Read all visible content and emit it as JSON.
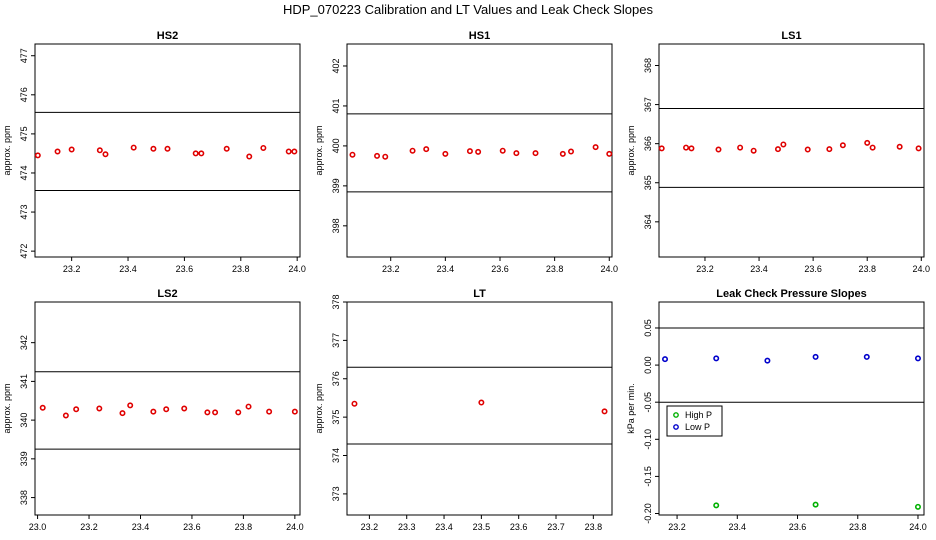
{
  "suptitle": "HDP_070223  Calibration and LT Values and Leak Check Slopes",
  "chart_data": [
    {
      "type": "scatter",
      "title": "HS2",
      "ylabel": "approx. ppm",
      "xlim": [
        23.07,
        24.01
      ],
      "ylim": [
        471.85,
        477.3
      ],
      "xticks": [
        23.2,
        23.4,
        23.6,
        23.8,
        24.0
      ],
      "xtick_labels": [
        "23.2",
        "23.4",
        "23.6",
        "23.8",
        "24.0"
      ],
      "yticks": [
        472,
        473,
        474,
        475,
        476,
        477
      ],
      "ytick_labels": [
        "472",
        "473",
        "474",
        "475",
        "476",
        "477"
      ],
      "hlines": [
        473.55,
        475.55
      ],
      "series": [
        {
          "name": "",
          "color": "#e00000",
          "marker": "o",
          "x": [
            23.08,
            23.15,
            23.2,
            23.3,
            23.32,
            23.42,
            23.49,
            23.54,
            23.64,
            23.66,
            23.75,
            23.83,
            23.88,
            23.97,
            23.99
          ],
          "y": [
            474.45,
            474.55,
            474.6,
            474.58,
            474.48,
            474.65,
            474.62,
            474.62,
            474.5,
            474.5,
            474.62,
            474.42,
            474.64,
            474.55,
            474.55
          ]
        }
      ]
    },
    {
      "type": "scatter",
      "title": "HS1",
      "ylabel": "approx. ppm",
      "xlim": [
        23.04,
        24.01
      ],
      "ylim": [
        397.22,
        402.55
      ],
      "xticks": [
        23.2,
        23.4,
        23.6,
        23.8,
        24.0
      ],
      "xtick_labels": [
        "23.2",
        "23.4",
        "23.6",
        "23.8",
        "24.0"
      ],
      "yticks": [
        398,
        399,
        400,
        401,
        402
      ],
      "ytick_labels": [
        "398",
        "399",
        "400",
        "401",
        "402"
      ],
      "hlines": [
        398.85,
        400.8
      ],
      "series": [
        {
          "name": "",
          "color": "#e00000",
          "marker": "o",
          "x": [
            23.06,
            23.15,
            23.18,
            23.28,
            23.33,
            23.4,
            23.49,
            23.52,
            23.61,
            23.66,
            23.73,
            23.83,
            23.86,
            23.95,
            24.0
          ],
          "y": [
            399.78,
            399.75,
            399.73,
            399.88,
            399.92,
            399.8,
            399.87,
            399.85,
            399.88,
            399.82,
            399.82,
            399.8,
            399.86,
            399.97,
            399.8
          ]
        }
      ]
    },
    {
      "type": "scatter",
      "title": "LS1",
      "ylabel": "approx. ppm",
      "xlim": [
        23.03,
        24.01
      ],
      "ylim": [
        363.1,
        368.55
      ],
      "xticks": [
        23.2,
        23.4,
        23.6,
        23.8,
        24.0
      ],
      "xtick_labels": [
        "23.2",
        "23.4",
        "23.6",
        "23.8",
        "24.0"
      ],
      "yticks": [
        364,
        365,
        366,
        367,
        368
      ],
      "ytick_labels": [
        "364",
        "365",
        "366",
        "367",
        "368"
      ],
      "hlines": [
        364.88,
        366.9
      ],
      "series": [
        {
          "name": "",
          "color": "#e00000",
          "marker": "o",
          "x": [
            23.04,
            23.13,
            23.15,
            23.25,
            23.33,
            23.38,
            23.47,
            23.49,
            23.58,
            23.66,
            23.71,
            23.8,
            23.82,
            23.92,
            23.99
          ],
          "y": [
            365.88,
            365.9,
            365.88,
            365.85,
            365.9,
            365.82,
            365.86,
            365.98,
            365.85,
            365.86,
            365.96,
            366.02,
            365.9,
            365.92,
            365.88
          ]
        }
      ]
    },
    {
      "type": "scatter",
      "title": "LS2",
      "ylabel": "approx. ppm",
      "xlim": [
        22.99,
        24.02
      ],
      "ylim": [
        337.55,
        343.05
      ],
      "xticks": [
        23.0,
        23.2,
        23.4,
        23.6,
        23.8,
        24.0
      ],
      "xtick_labels": [
        "23.0",
        "23.2",
        "23.4",
        "23.6",
        "23.8",
        "24.0"
      ],
      "yticks": [
        338,
        339,
        340,
        341,
        342
      ],
      "ytick_labels": [
        "338",
        "339",
        "340",
        "341",
        "342"
      ],
      "hlines": [
        339.25,
        341.25
      ],
      "series": [
        {
          "name": "",
          "color": "#e00000",
          "marker": "o",
          "x": [
            23.02,
            23.11,
            23.15,
            23.24,
            23.33,
            23.36,
            23.45,
            23.5,
            23.57,
            23.66,
            23.69,
            23.78,
            23.82,
            23.9,
            24.0
          ],
          "y": [
            340.32,
            340.12,
            340.28,
            340.3,
            340.18,
            340.38,
            340.22,
            340.28,
            340.3,
            340.2,
            340.2,
            340.2,
            340.35,
            340.22,
            340.22
          ]
        }
      ]
    },
    {
      "type": "scatter",
      "title": "LT",
      "ylabel": "approx. ppm",
      "xlim": [
        23.14,
        23.85
      ],
      "ylim": [
        372.45,
        378.0
      ],
      "xticks": [
        23.2,
        23.3,
        23.4,
        23.5,
        23.6,
        23.7,
        23.8
      ],
      "xtick_labels": [
        "23.2",
        "23.3",
        "23.4",
        "23.5",
        "23.6",
        "23.7",
        "23.8"
      ],
      "yticks": [
        373,
        374,
        375,
        376,
        377,
        378
      ],
      "ytick_labels": [
        "373",
        "374",
        "375",
        "376",
        "377",
        "378"
      ],
      "hlines": [
        374.3,
        376.3
      ],
      "series": [
        {
          "name": "",
          "color": "#e00000",
          "marker": "o",
          "x": [
            23.16,
            23.5,
            23.83
          ],
          "y": [
            375.35,
            375.38,
            375.15
          ]
        }
      ]
    },
    {
      "type": "scatter",
      "title": "Leak Check Pressure Slopes",
      "ylabel": "kPa per min.",
      "xlim": [
        23.14,
        24.02
      ],
      "ylim": [
        -0.202,
        0.085
      ],
      "xticks": [
        23.2,
        23.4,
        23.6,
        23.8,
        24.0
      ],
      "xtick_labels": [
        "23.2",
        "23.4",
        "23.6",
        "23.8",
        "24.0"
      ],
      "yticks": [
        0.05,
        0.0,
        -0.05,
        -0.1,
        -0.15,
        -0.2
      ],
      "ytick_labels": [
        "0.05",
        "0.00",
        "-0.05",
        "-0.10",
        "-0.15",
        "-0.20"
      ],
      "hlines": [
        0.05,
        -0.05
      ],
      "legend": {
        "placement": "center-left",
        "entries": [
          "High P",
          "Low P"
        ]
      },
      "series": [
        {
          "name": "High P",
          "color": "#00b000",
          "marker": "o",
          "x": [
            23.33,
            23.66,
            24.0
          ],
          "y": [
            -0.189,
            -0.188,
            -0.191
          ]
        },
        {
          "name": "Low P",
          "color": "#0000cc",
          "marker": "o",
          "x": [
            23.16,
            23.33,
            23.5,
            23.66,
            23.83,
            24.0
          ],
          "y": [
            0.008,
            0.009,
            0.006,
            0.011,
            0.011,
            0.009
          ]
        }
      ]
    }
  ]
}
